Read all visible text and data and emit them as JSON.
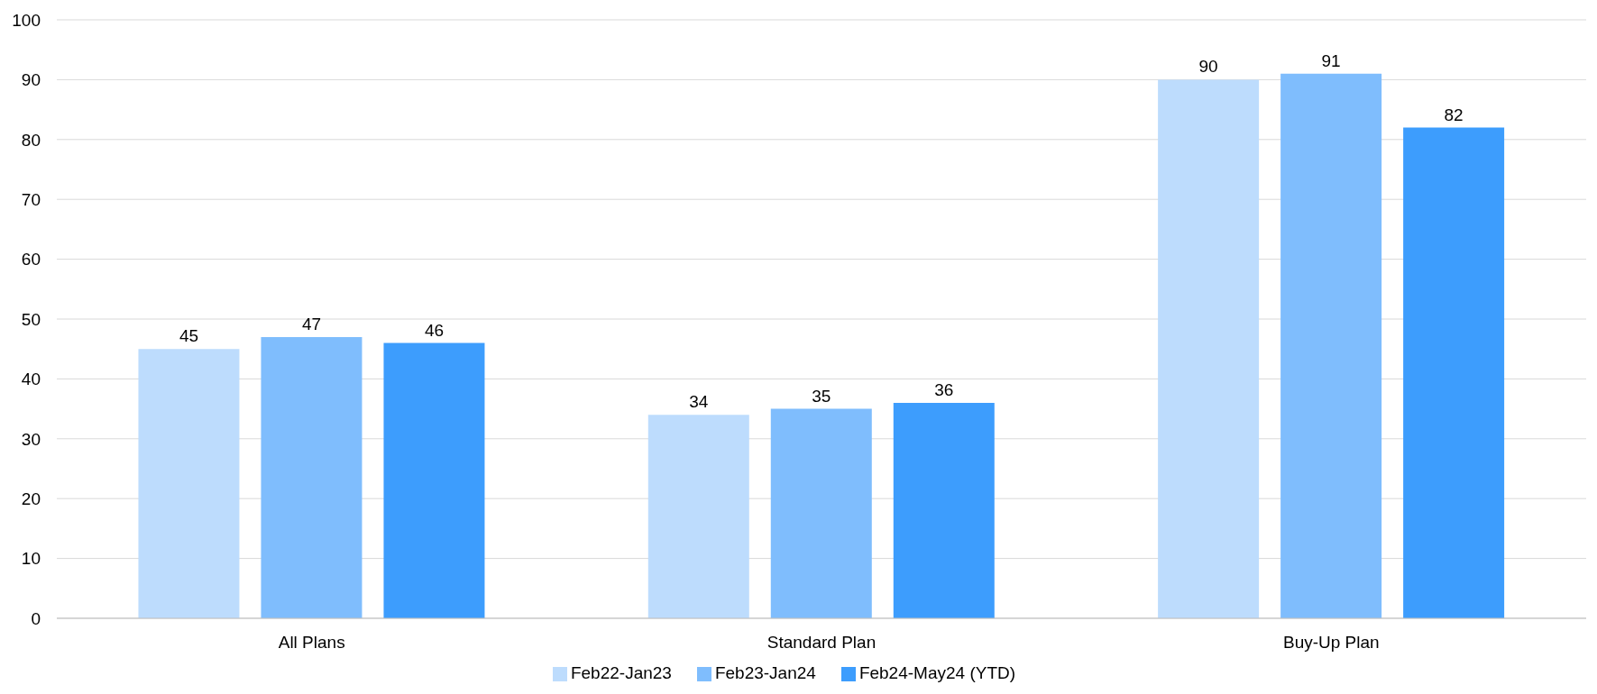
{
  "chart_data": {
    "type": "bar",
    "categories": [
      "All Plans",
      "Standard Plan",
      "Buy-Up Plan"
    ],
    "series": [
      {
        "name": "Feb22-Jan23",
        "color": "#bddcfd",
        "values": [
          45,
          34,
          90
        ]
      },
      {
        "name": "Feb23-Jan24",
        "color": "#7fbdfd",
        "values": [
          47,
          35,
          91
        ]
      },
      {
        "name": "Feb24-May24 (YTD)",
        "color": "#3d9dfd",
        "values": [
          46,
          36,
          82
        ]
      }
    ],
    "ylim": [
      0,
      100
    ],
    "yticks": [
      0,
      10,
      20,
      30,
      40,
      50,
      60,
      70,
      80,
      90,
      100
    ],
    "grid": "y",
    "legend": "bottom",
    "data_labels": true
  }
}
